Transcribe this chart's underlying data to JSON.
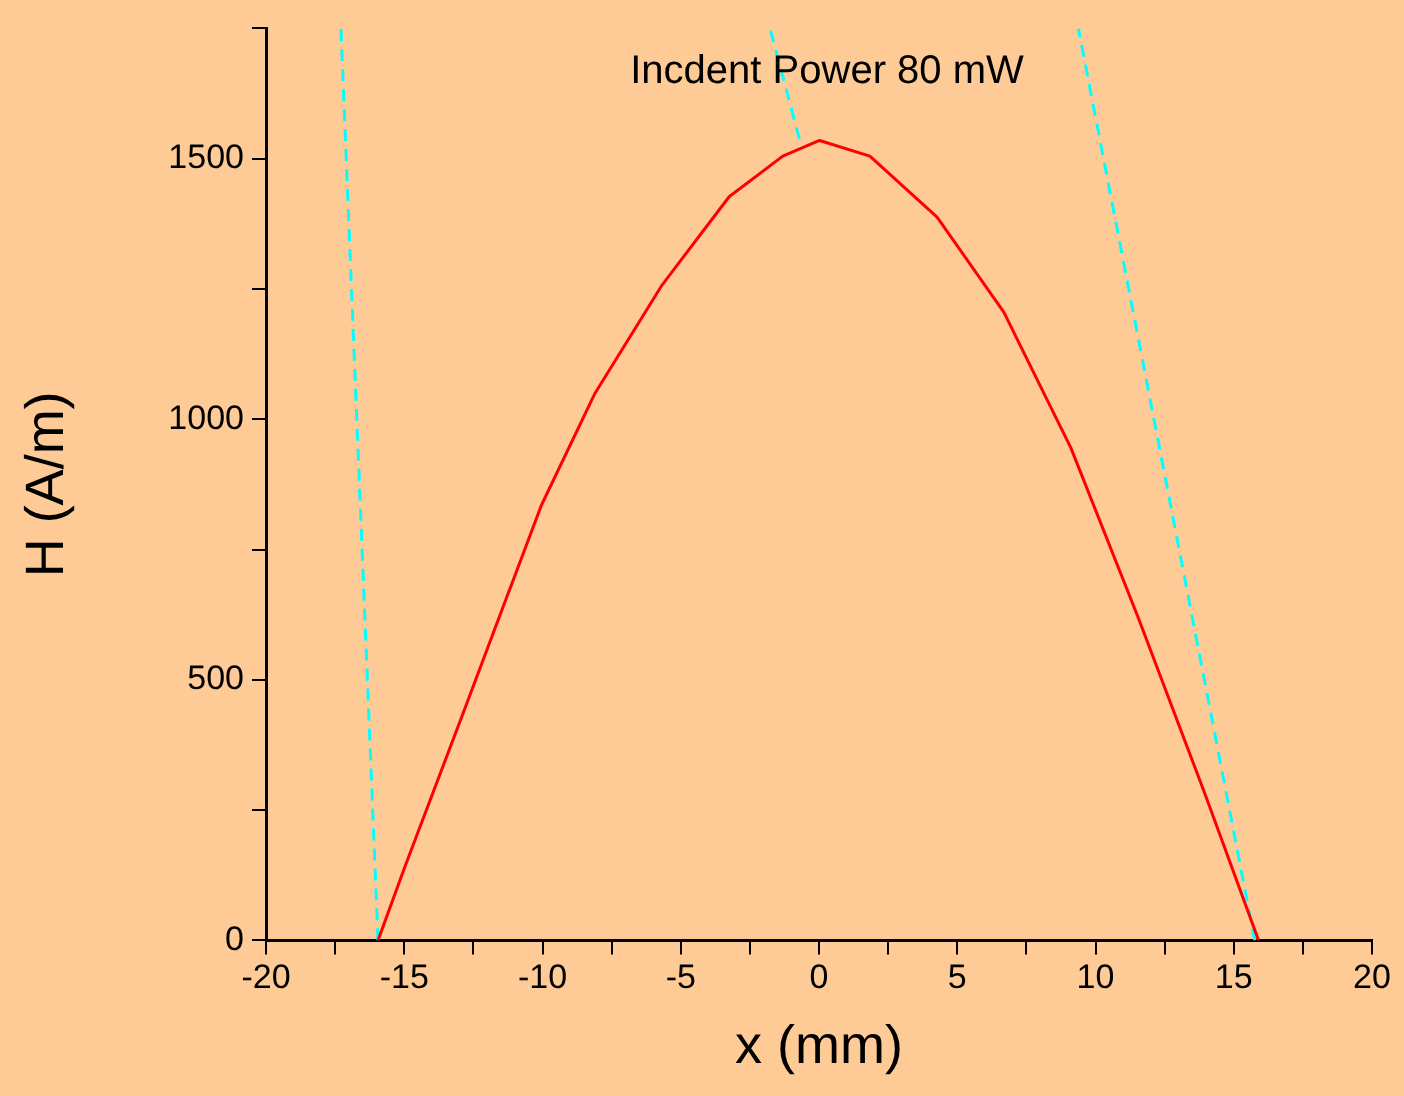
{
  "chart_data": {
    "type": "line",
    "xlabel": "x (mm)",
    "ylabel": "H (A/m)",
    "annotations": [
      "Incdent Power 80 mW"
    ],
    "xlim": [
      -20,
      20
    ],
    "ylim": [
      0,
      1750
    ],
    "xticks": [
      -20,
      {
        "value": -17.5,
        "label": null
      },
      -15,
      {
        "value": -12.5,
        "label": null
      },
      -10,
      {
        "value": -7.5,
        "label": null
      },
      -5,
      {
        "value": -2.5,
        "label": null
      },
      0,
      {
        "value": 2.5,
        "label": null
      },
      5,
      {
        "value": 7.5,
        "label": null
      },
      10,
      {
        "value": 12.5,
        "label": null
      },
      15,
      {
        "value": 17.5,
        "label": null
      },
      20
    ],
    "yticks": [
      0,
      {
        "value": 250,
        "label": null
      },
      500,
      {
        "value": 750,
        "label": null
      },
      1000,
      {
        "value": 1250,
        "label": null
      },
      1500,
      {
        "value": 1750,
        "label": null
      }
    ],
    "grid": false,
    "legend": false,
    "marker": "none",
    "series": [
      {
        "color": "#ff0000",
        "line_style": "solid",
        "x": [
          -15.95,
          -15.0,
          -12.95,
          -10.04,
          -8.1,
          -5.67,
          -3.25,
          -1.31,
          0.02,
          1.84,
          4.27,
          6.69,
          9.11,
          11.54,
          13.96,
          15.9
        ],
        "values": [
          0,
          138,
          425,
          835,
          1050,
          1258,
          1427,
          1505,
          1535,
          1505,
          1388,
          1205,
          945,
          620,
          281,
          0
        ]
      },
      {
        "color": "#00ffff",
        "line_style": "dashed",
        "x": [
          -15.95,
          -17.29
        ],
        "values": [
          0,
          1750
        ]
      },
      {
        "color": "#00ffff",
        "line_style": "dashed",
        "x": [
          15.76,
          9.38
        ],
        "values": [
          0,
          1750
        ]
      },
      {
        "color": "#00ffff",
        "line_style": "dashed",
        "x": [
          -0.71,
          -1.77
        ],
        "values": [
          1538,
          1750
        ]
      }
    ]
  }
}
